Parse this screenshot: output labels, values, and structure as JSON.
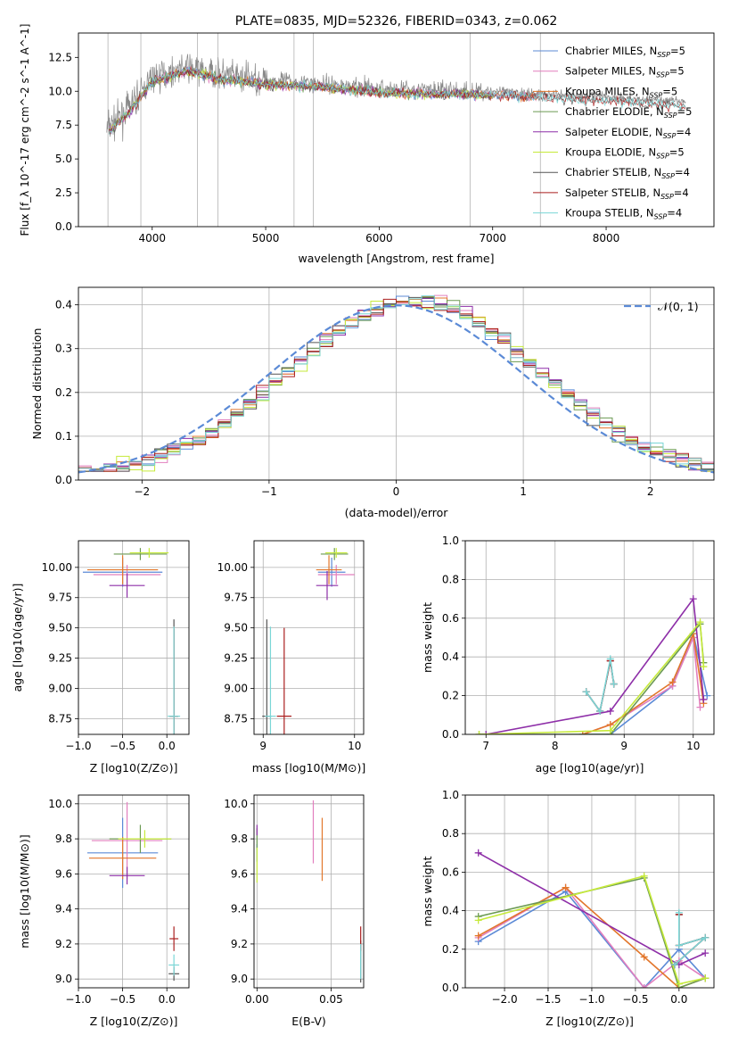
{
  "colors": {
    "Chabrier MILES": "#5b8ad6",
    "Salpeter MILES": "#e27fbe",
    "Kroupa MILES": "#e2762b",
    "Chabrier ELODIE": "#6b9a52",
    "Salpeter ELODIE": "#8e2fa8",
    "Kroupa ELODIE": "#c6ea3a",
    "Chabrier STELIB": "#555555",
    "Salpeter STELIB": "#aa1f1f",
    "Kroupa STELIB": "#7ad6d6",
    "gauss": "#5b8ad6",
    "spectrum": "#888888"
  },
  "chart_data": [
    {
      "id": "spectrum",
      "type": "line",
      "title": "PLATE=0835, MJD=52326, FIBERID=0343, z=0.062",
      "xlabel": "wavelength [Angstrom, rest frame]",
      "ylabel": "Flux [f_λ 10^-17 erg cm^-2 s^-1 A^-1]",
      "xlim": [
        3350,
        8950
      ],
      "ylim": [
        0,
        14.3
      ],
      "xticks": [
        4000,
        5000,
        6000,
        7000,
        8000
      ],
      "xtick_labels": [
        "4000",
        "5000",
        "6000",
        "7000",
        "8000"
      ],
      "yticks": [
        0,
        2.5,
        5,
        7.5,
        10,
        12.5
      ],
      "ytick_labels": [
        "0.0",
        "2.5",
        "5.0",
        "7.5",
        "10.0",
        "12.5"
      ],
      "legend_position": "top-right",
      "legend": [
        {
          "name": "Chabrier MILES, N_SSP=5",
          "base": "Chabrier MILES, N",
          "sub": "SSP",
          "tail": "=5",
          "color": "#5b8ad6"
        },
        {
          "name": "Salpeter MILES, N_SSP=5",
          "base": "Salpeter MILES, N",
          "sub": "SSP",
          "tail": "=5",
          "color": "#e27fbe"
        },
        {
          "name": "Kroupa MILES, N_SSP=5",
          "base": "Kroupa MILES, N",
          "sub": "SSP",
          "tail": "=5",
          "color": "#e2762b"
        },
        {
          "name": "Chabrier ELODIE, N_SSP=5",
          "base": "Chabrier ELODIE, N",
          "sub": "SSP",
          "tail": "=5",
          "color": "#6b9a52"
        },
        {
          "name": "Salpeter ELODIE, N_SSP=4",
          "base": "Salpeter ELODIE, N",
          "sub": "SSP",
          "tail": "=4",
          "color": "#8e2fa8"
        },
        {
          "name": "Kroupa ELODIE, N_SSP=5",
          "base": "Kroupa ELODIE, N",
          "sub": "SSP",
          "tail": "=5",
          "color": "#c6ea3a"
        },
        {
          "name": "Chabrier STELIB, N_SSP=4",
          "base": "Chabrier STELIB, N",
          "sub": "SSP",
          "tail": "=4",
          "color": "#555555"
        },
        {
          "name": "Salpeter STELIB, N_SSP=4",
          "base": "Salpeter STELIB, N",
          "sub": "SSP",
          "tail": "=4",
          "color": "#aa1f1f"
        },
        {
          "name": "Kroupa STELIB, N_SSP=4",
          "base": "Kroupa STELIB, N",
          "sub": "SSP",
          "tail": "=4",
          "color": "#7ad6d6"
        }
      ],
      "spectrum_profile": [
        [
          3600,
          7.2
        ],
        [
          3800,
          8.8
        ],
        [
          4000,
          11.0
        ],
        [
          4300,
          11.8
        ],
        [
          4600,
          11.2
        ],
        [
          5000,
          10.8
        ],
        [
          5500,
          10.6
        ],
        [
          6000,
          10.2
        ],
        [
          6500,
          10.1
        ],
        [
          7000,
          10.0
        ],
        [
          7500,
          9.8
        ],
        [
          8000,
          9.6
        ],
        [
          8500,
          9.3
        ],
        [
          8700,
          9.2
        ]
      ]
    },
    {
      "id": "residuals",
      "type": "histogram",
      "xlabel": "(data-model)/error",
      "ylabel": "Normed distribution",
      "xlim": [
        -2.5,
        2.5
      ],
      "ylim": [
        0,
        0.44
      ],
      "xticks": [
        -2,
        -1,
        0,
        1,
        2
      ],
      "xtick_labels": [
        "−2",
        "−1",
        "0",
        "1",
        "2"
      ],
      "yticks": [
        0,
        0.1,
        0.2,
        0.3,
        0.4
      ],
      "ytick_labels": [
        "0.0",
        "0.1",
        "0.2",
        "0.3",
        "0.4"
      ],
      "grid": true,
      "legend_position": "top-right",
      "legend": [
        {
          "name": "N(0,1)",
          "label": "𝒩(0, 1)"
        }
      ],
      "bin_width": 0.1,
      "bin_start": -2.5
    },
    {
      "id": "age-vs-Z",
      "type": "errorbar",
      "xlabel": "Z [log10(Z/Z⊙)]",
      "ylabel": "age  [log10(age/yr)]",
      "xlim": [
        -1.0,
        0.25
      ],
      "ylim": [
        8.62,
        10.22
      ],
      "xticks": [
        -1.0,
        -0.5,
        0.0
      ],
      "xtick_labels": [
        "−1.0",
        "−0.5",
        "0.0"
      ],
      "yticks": [
        8.75,
        9.0,
        9.25,
        9.5,
        9.75,
        10.0
      ],
      "ytick_labels": [
        "8.75",
        "9.00",
        "9.25",
        "9.50",
        "9.75",
        "10.00"
      ],
      "grid": true,
      "points": [
        {
          "series": "Chabrier MILES",
          "x": -0.5,
          "xerr": 0.45,
          "y": 9.96,
          "yerr": 0.12
        },
        {
          "series": "Salpeter MILES",
          "x": -0.45,
          "xerr": 0.38,
          "y": 9.94,
          "yerr": 0.08
        },
        {
          "series": "Kroupa MILES",
          "x": -0.5,
          "xerr": 0.4,
          "y": 9.98,
          "yerr": 0.12
        },
        {
          "series": "Chabrier ELODIE",
          "x": -0.3,
          "xerr": 0.3,
          "y": 10.11,
          "yerr": 0.05
        },
        {
          "series": "Salpeter ELODIE",
          "x": -0.45,
          "xerr": 0.2,
          "y": 9.85,
          "yerr": 0.1
        },
        {
          "series": "Kroupa ELODIE",
          "x": -0.2,
          "xerr": 0.22,
          "y": 10.12,
          "yerr": 0.04
        },
        {
          "series": "Chabrier STELIB",
          "x": 0.08,
          "xerr": 0.05,
          "y": 8.77,
          "yerr": 0.8
        },
        {
          "series": "Salpeter STELIB",
          "x": 0.08,
          "xerr": 0.05,
          "y": 8.77,
          "yerr": 0.72
        },
        {
          "series": "Kroupa STELIB",
          "x": 0.08,
          "xerr": 0.07,
          "y": 8.77,
          "yerr": 0.74
        }
      ]
    },
    {
      "id": "age-vs-mass",
      "type": "errorbar",
      "xlabel": "mass [log10(M/M⊙)]",
      "ylabel": "",
      "xlim": [
        8.9,
        10.1
      ],
      "ylim": [
        8.62,
        10.22
      ],
      "xticks": [
        9,
        10
      ],
      "xtick_labels": [
        "9",
        "10"
      ],
      "yticks": [
        8.75,
        9.0,
        9.25,
        9.5,
        9.75,
        10.0
      ],
      "ytick_labels": [
        "8.75",
        "9.00",
        "9.25",
        "9.50",
        "9.75",
        "10.00"
      ],
      "grid": true,
      "points": [
        {
          "series": "Chabrier MILES",
          "x": 9.75,
          "xerr": 0.15,
          "y": 9.96,
          "yerr": 0.12
        },
        {
          "series": "Salpeter MILES",
          "x": 9.8,
          "xerr": 0.2,
          "y": 9.94,
          "yerr": 0.08
        },
        {
          "series": "Kroupa MILES",
          "x": 9.72,
          "xerr": 0.14,
          "y": 9.98,
          "yerr": 0.12
        },
        {
          "series": "Chabrier ELODIE",
          "x": 9.78,
          "xerr": 0.15,
          "y": 10.11,
          "yerr": 0.05
        },
        {
          "series": "Salpeter ELODIE",
          "x": 9.7,
          "xerr": 0.12,
          "y": 9.85,
          "yerr": 0.12
        },
        {
          "series": "Kroupa ELODIE",
          "x": 9.8,
          "xerr": 0.12,
          "y": 10.12,
          "yerr": 0.04
        },
        {
          "series": "Chabrier STELIB",
          "x": 9.04,
          "xerr": 0.05,
          "y": 8.77,
          "yerr": 0.8
        },
        {
          "series": "Salpeter STELIB",
          "x": 9.23,
          "xerr": 0.08,
          "y": 8.77,
          "yerr": 0.73
        },
        {
          "series": "Kroupa STELIB",
          "x": 9.08,
          "xerr": 0.06,
          "y": 8.77,
          "yerr": 0.74
        }
      ]
    },
    {
      "id": "weight-vs-age",
      "type": "line",
      "xlabel": "age  [log10(age/yr)]",
      "ylabel": "mass weight",
      "xlim": [
        6.7,
        10.3
      ],
      "ylim": [
        0,
        1.0
      ],
      "xticks": [
        7,
        8,
        9,
        10
      ],
      "xtick_labels": [
        "7",
        "8",
        "9",
        "10"
      ],
      "yticks": [
        0,
        0.2,
        0.4,
        0.6,
        0.8,
        1.0
      ],
      "ytick_labels": [
        "0.0",
        "0.2",
        "0.4",
        "0.6",
        "0.8",
        "1.0"
      ],
      "grid": true,
      "series": [
        {
          "name": "Chabrier MILES",
          "x": [
            8.4,
            8.8,
            9.7,
            10.0,
            10.2
          ],
          "y": [
            0.0,
            0.0,
            0.25,
            0.52,
            0.2
          ]
        },
        {
          "name": "Salpeter MILES",
          "x": [
            8.4,
            8.8,
            9.7,
            10.0,
            10.1
          ],
          "y": [
            0.0,
            0.05,
            0.25,
            0.5,
            0.14
          ]
        },
        {
          "name": "Kroupa MILES",
          "x": [
            8.4,
            8.8,
            9.7,
            10.0,
            10.15
          ],
          "y": [
            0.0,
            0.05,
            0.27,
            0.52,
            0.16
          ]
        },
        {
          "name": "Chabrier ELODIE",
          "x": [
            6.9,
            8.8,
            10.1,
            10.15
          ],
          "y": [
            0.0,
            0.0,
            0.57,
            0.37
          ]
        },
        {
          "name": "Salpeter ELODIE",
          "x": [
            7.0,
            8.8,
            10.0,
            10.15
          ],
          "y": [
            0.0,
            0.12,
            0.7,
            0.18
          ]
        },
        {
          "name": "Kroupa ELODIE",
          "x": [
            6.9,
            8.8,
            10.1,
            10.15
          ],
          "y": [
            0.0,
            0.02,
            0.58,
            0.35
          ]
        },
        {
          "name": "Chabrier STELIB",
          "x": [
            8.45,
            8.65,
            8.8,
            8.85
          ],
          "y": [
            0.22,
            0.12,
            0.38,
            0.26
          ]
        },
        {
          "name": "Salpeter STELIB",
          "x": [
            8.45,
            8.65,
            8.8,
            8.85
          ],
          "y": [
            0.22,
            0.12,
            0.38,
            0.26
          ]
        },
        {
          "name": "Kroupa STELIB",
          "x": [
            8.45,
            8.65,
            8.8,
            8.85
          ],
          "y": [
            0.22,
            0.12,
            0.39,
            0.26
          ]
        }
      ]
    },
    {
      "id": "mass-vs-Z",
      "type": "errorbar",
      "xlabel": "Z [log10(Z/Z⊙)]",
      "ylabel": "mass [log10(M/M⊙)]",
      "xlim": [
        -1.0,
        0.25
      ],
      "ylim": [
        8.95,
        10.05
      ],
      "xticks": [
        -1.0,
        -0.5,
        0.0
      ],
      "xtick_labels": [
        "−1.0",
        "−0.5",
        "0.0"
      ],
      "yticks": [
        9.0,
        9.2,
        9.4,
        9.6,
        9.8,
        10.0
      ],
      "ytick_labels": [
        "9.0",
        "9.2",
        "9.4",
        "9.6",
        "9.8",
        "10.0"
      ],
      "grid": true,
      "points": [
        {
          "series": "Chabrier MILES",
          "x": -0.5,
          "xerr": 0.4,
          "y": 9.72,
          "yerr": 0.2
        },
        {
          "series": "Salpeter MILES",
          "x": -0.45,
          "xerr": 0.4,
          "y": 9.79,
          "yerr": 0.22
        },
        {
          "series": "Kroupa MILES",
          "x": -0.5,
          "xerr": 0.38,
          "y": 9.69,
          "yerr": 0.12
        },
        {
          "series": "Chabrier ELODIE",
          "x": -0.3,
          "xerr": 0.35,
          "y": 9.8,
          "yerr": 0.08
        },
        {
          "series": "Salpeter ELODIE",
          "x": -0.45,
          "xerr": 0.2,
          "y": 9.59,
          "yerr": 0.05
        },
        {
          "series": "Kroupa ELODIE",
          "x": -0.25,
          "xerr": 0.3,
          "y": 9.8,
          "yerr": 0.05
        },
        {
          "series": "Chabrier STELIB",
          "x": 0.08,
          "xerr": 0.06,
          "y": 9.03,
          "yerr": 0.04
        },
        {
          "series": "Salpeter STELIB",
          "x": 0.08,
          "xerr": 0.05,
          "y": 9.23,
          "yerr": 0.07
        },
        {
          "series": "Kroupa STELIB",
          "x": 0.08,
          "xerr": 0.06,
          "y": 9.08,
          "yerr": 0.06
        }
      ]
    },
    {
      "id": "mass-vs-ebv",
      "type": "errorbar",
      "xlabel": "E(B-V)",
      "ylabel": "",
      "xlim": [
        -0.002,
        0.072
      ],
      "ylim": [
        8.95,
        10.05
      ],
      "xticks": [
        0.0,
        0.05
      ],
      "xtick_labels": [
        "0.00",
        "0.05"
      ],
      "yticks": [
        9.0,
        9.2,
        9.4,
        9.6,
        9.8,
        10.0
      ],
      "ytick_labels": [
        "9.0",
        "9.2",
        "9.4",
        "9.6",
        "9.8",
        "10.0"
      ],
      "grid": true,
      "points": [
        {
          "series": "Chabrier MILES",
          "x": 0.0,
          "xerr": 0,
          "y": 9.72,
          "yerr": 0.05
        },
        {
          "series": "Salpeter MILES",
          "x": 0.038,
          "xerr": 0,
          "y": 9.84,
          "yerr": 0.18
        },
        {
          "series": "Kroupa MILES",
          "x": 0.044,
          "xerr": 0,
          "y": 9.74,
          "yerr": 0.18
        },
        {
          "series": "Chabrier ELODIE",
          "x": 0.0,
          "xerr": 0,
          "y": 9.8,
          "yerr": 0.06
        },
        {
          "series": "Salpeter ELODIE",
          "x": 0.0,
          "xerr": 0,
          "y": 9.85,
          "yerr": 0.03
        },
        {
          "series": "Kroupa ELODIE",
          "x": 0.0,
          "xerr": 0,
          "y": 9.65,
          "yerr": 0.1
        },
        {
          "series": "Chabrier STELIB",
          "x": 0.07,
          "xerr": 0,
          "y": 9.1,
          "yerr": 0.12
        },
        {
          "series": "Salpeter STELIB",
          "x": 0.07,
          "xerr": 0,
          "y": 9.23,
          "yerr": 0.07
        },
        {
          "series": "Kroupa STELIB",
          "x": 0.07,
          "xerr": 0,
          "y": 9.1,
          "yerr": 0.1
        }
      ]
    },
    {
      "id": "weight-vs-Z",
      "type": "line",
      "xlabel": "Z [log10(Z/Z⊙)]",
      "ylabel": "mass weight",
      "xlim": [
        -2.45,
        0.4
      ],
      "ylim": [
        0,
        1.0
      ],
      "xticks": [
        -2.0,
        -1.5,
        -1.0,
        -0.5,
        0.0
      ],
      "xtick_labels": [
        "−2.0",
        "−1.5",
        "−1.0",
        "−0.5",
        "0.0"
      ],
      "yticks": [
        0,
        0.2,
        0.4,
        0.6,
        0.8,
        1.0
      ],
      "ytick_labels": [
        "0.0",
        "0.2",
        "0.4",
        "0.6",
        "0.8",
        "1.0"
      ],
      "grid": true,
      "series": [
        {
          "name": "Chabrier MILES",
          "x": [
            -2.3,
            -1.3,
            -0.4,
            0.0,
            0.3
          ],
          "y": [
            0.24,
            0.5,
            0.0,
            0.2,
            0.05
          ]
        },
        {
          "name": "Salpeter MILES",
          "x": [
            -2.3,
            -1.3,
            -0.4,
            0.0,
            0.3
          ],
          "y": [
            0.26,
            0.52,
            0.0,
            0.14,
            0.05
          ]
        },
        {
          "name": "Kroupa MILES",
          "x": [
            -2.3,
            -1.3,
            -0.4,
            0.0,
            0.3
          ],
          "y": [
            0.27,
            0.52,
            0.16,
            0.0,
            0.05
          ]
        },
        {
          "name": "Chabrier ELODIE",
          "x": [
            -2.3,
            -0.4,
            0.0,
            0.3
          ],
          "y": [
            0.37,
            0.57,
            0.0,
            0.05
          ]
        },
        {
          "name": "Salpeter ELODIE",
          "x": [
            -2.3,
            0.0,
            0.3
          ],
          "y": [
            0.7,
            0.12,
            0.18
          ]
        },
        {
          "name": "Kroupa ELODIE",
          "x": [
            -2.3,
            -0.4,
            0.0,
            0.3
          ],
          "y": [
            0.35,
            0.58,
            0.02,
            0.05
          ]
        },
        {
          "name": "Chabrier STELIB",
          "x": [
            0.0,
            0.0,
            0.3,
            -0.05
          ],
          "y": [
            0.38,
            0.22,
            0.26,
            0.12
          ]
        },
        {
          "name": "Salpeter STELIB",
          "x": [
            0.0,
            0.0,
            0.3,
            -0.05
          ],
          "y": [
            0.38,
            0.22,
            0.26,
            0.12
          ]
        },
        {
          "name": "Kroupa STELIB",
          "x": [
            0.0,
            0.0,
            0.3,
            -0.05
          ],
          "y": [
            0.39,
            0.22,
            0.26,
            0.12
          ]
        }
      ]
    }
  ]
}
